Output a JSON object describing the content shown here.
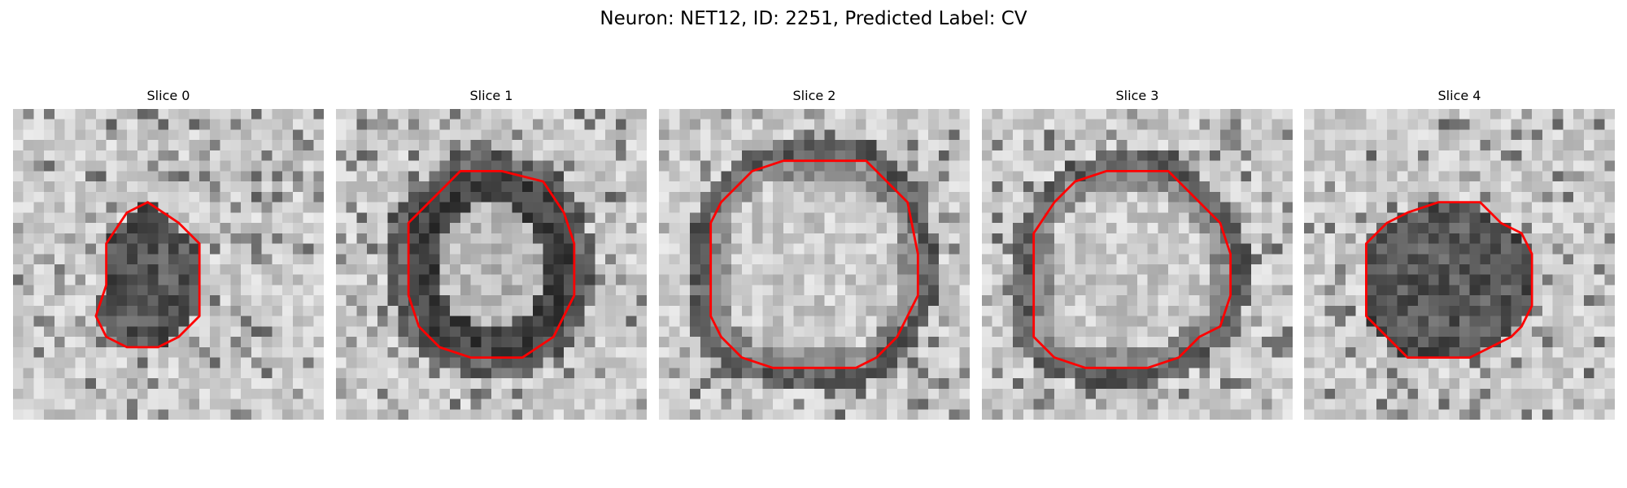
{
  "figure": {
    "title": "Neuron: NET12, ID: 2251, Predicted Label: CV"
  },
  "panels": [
    {
      "title": "Slice 0",
      "outline_color": "#ff0000",
      "interior": "dark",
      "outline": [
        [
          13,
          9
        ],
        [
          16,
          11
        ],
        [
          18,
          13
        ],
        [
          18,
          17
        ],
        [
          18,
          20
        ],
        [
          16,
          22
        ],
        [
          14,
          23
        ],
        [
          11,
          23
        ],
        [
          9,
          22
        ],
        [
          8,
          20
        ],
        [
          9,
          17
        ],
        [
          9,
          13
        ],
        [
          11,
          10
        ]
      ]
    },
    {
      "title": "Slice 1",
      "outline_color": "#ff0000",
      "interior": "ring",
      "outline": [
        [
          12,
          6
        ],
        [
          16,
          6
        ],
        [
          20,
          7
        ],
        [
          22,
          10
        ],
        [
          23,
          13
        ],
        [
          23,
          18
        ],
        [
          22,
          20
        ],
        [
          21,
          22
        ],
        [
          18,
          24
        ],
        [
          13,
          24
        ],
        [
          10,
          23
        ],
        [
          8,
          21
        ],
        [
          7,
          18
        ],
        [
          7,
          11
        ],
        [
          8,
          10
        ],
        [
          10,
          8
        ]
      ]
    },
    {
      "title": "Slice 2",
      "outline_color": "#ff0000",
      "interior": "light",
      "outline": [
        [
          12,
          5
        ],
        [
          20,
          5
        ],
        [
          24,
          9
        ],
        [
          25,
          14
        ],
        [
          25,
          18
        ],
        [
          24,
          20
        ],
        [
          23,
          22
        ],
        [
          21,
          24
        ],
        [
          19,
          25
        ],
        [
          11,
          25
        ],
        [
          8,
          24
        ],
        [
          6,
          22
        ],
        [
          5,
          20
        ],
        [
          5,
          16
        ],
        [
          5,
          11
        ],
        [
          6,
          9
        ],
        [
          9,
          6
        ]
      ]
    },
    {
      "title": "Slice 3",
      "outline_color": "#ff0000",
      "interior": "light",
      "outline": [
        [
          12,
          6
        ],
        [
          18,
          6
        ],
        [
          20,
          8
        ],
        [
          23,
          11
        ],
        [
          24,
          14
        ],
        [
          24,
          18
        ],
        [
          23,
          21
        ],
        [
          21,
          22
        ],
        [
          19,
          24
        ],
        [
          16,
          25
        ],
        [
          10,
          25
        ],
        [
          7,
          24
        ],
        [
          5,
          22
        ],
        [
          5,
          18
        ],
        [
          5,
          12
        ],
        [
          7,
          9
        ],
        [
          9,
          7
        ]
      ]
    },
    {
      "title": "Slice 4",
      "outline_color": "#ff0000",
      "interior": "dark",
      "outline": [
        [
          13,
          9
        ],
        [
          17,
          9
        ],
        [
          19,
          11
        ],
        [
          21,
          12
        ],
        [
          22,
          14
        ],
        [
          22,
          17
        ],
        [
          22,
          19
        ],
        [
          21,
          21
        ],
        [
          20,
          22
        ],
        [
          18,
          23
        ],
        [
          16,
          24
        ],
        [
          10,
          24
        ],
        [
          8,
          22
        ],
        [
          6,
          20
        ],
        [
          6,
          15
        ],
        [
          6,
          13
        ],
        [
          8,
          11
        ],
        [
          10,
          10
        ]
      ]
    }
  ]
}
